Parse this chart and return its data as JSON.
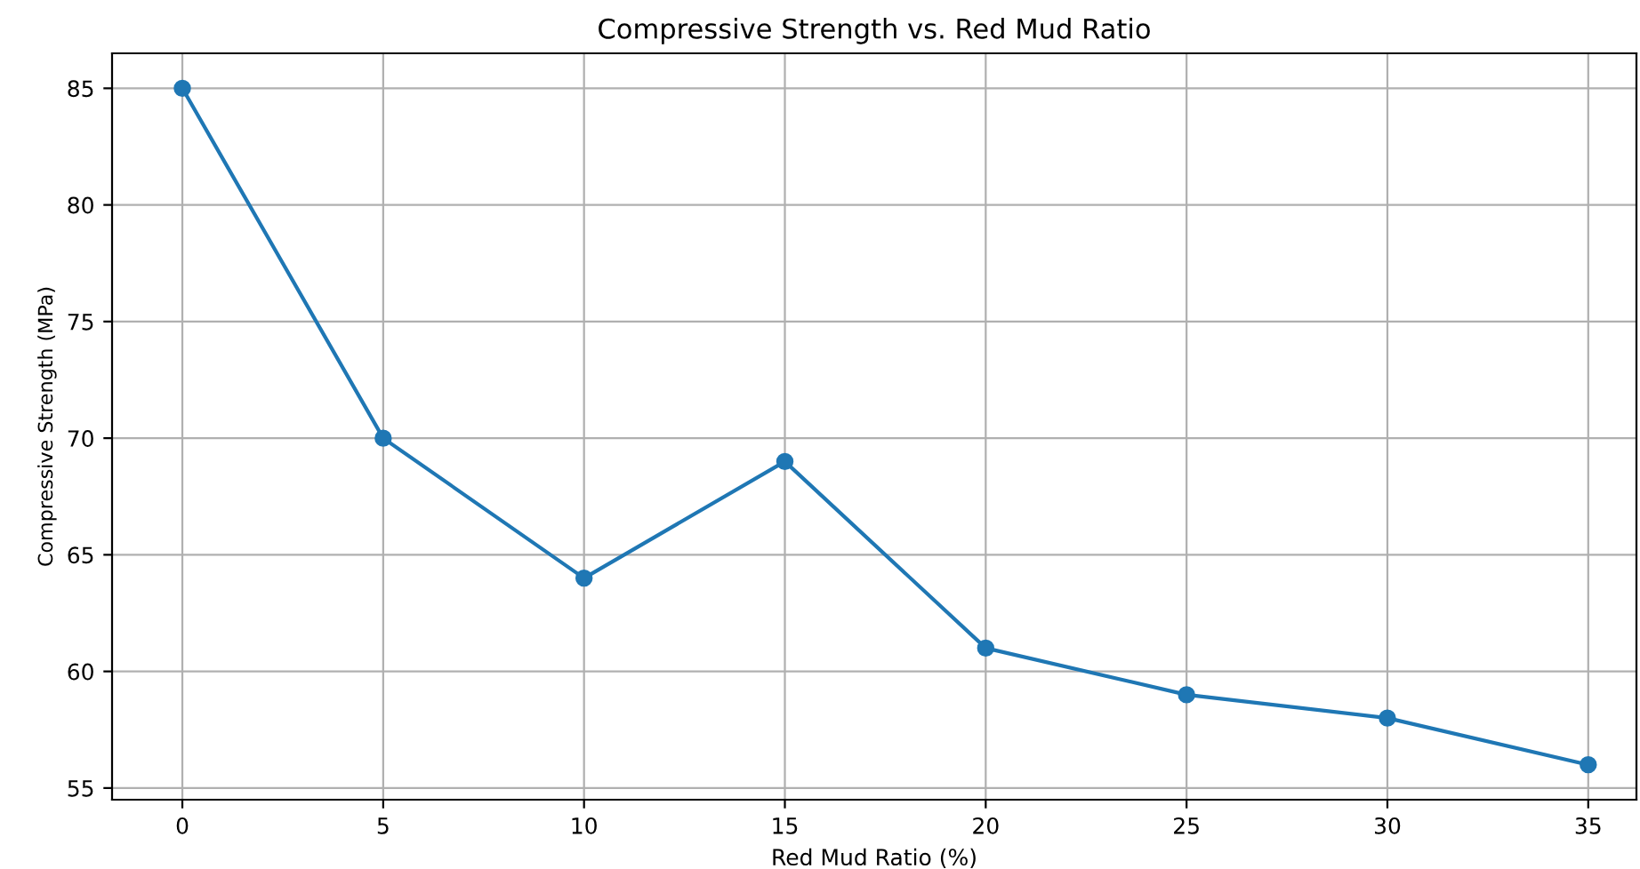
{
  "chart_data": {
    "type": "line",
    "title": "Compressive Strength vs. Red Mud Ratio",
    "xlabel": "Red Mud Ratio (%)",
    "ylabel": "Compressive Strength (MPa)",
    "x": [
      0,
      5,
      10,
      15,
      20,
      25,
      30,
      35
    ],
    "series": [
      {
        "color": "#1f77b4",
        "values": [
          85,
          70,
          64,
          69,
          61,
          59,
          58,
          56
        ]
      }
    ],
    "xlim": [
      -1.75,
      36.2
    ],
    "ylim": [
      54.5,
      86.5
    ],
    "xticks": [
      0,
      5,
      10,
      15,
      20,
      25,
      30,
      35
    ],
    "yticks": [
      55,
      60,
      65,
      70,
      75,
      80,
      85
    ],
    "grid": true,
    "marker": "circle",
    "line_style": "solid"
  }
}
